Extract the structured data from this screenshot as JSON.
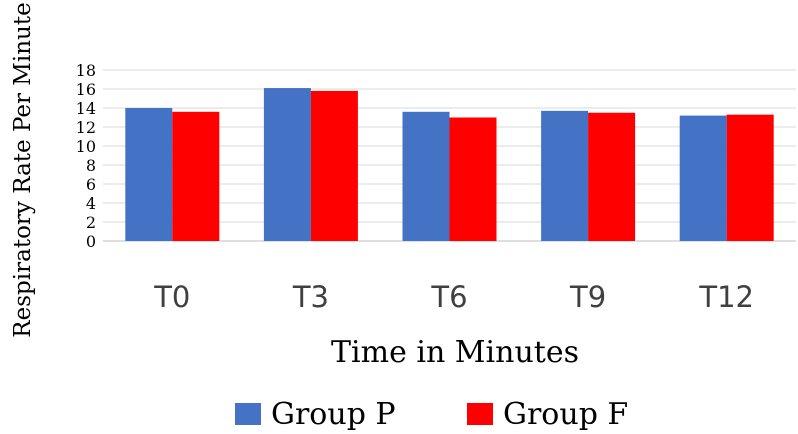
{
  "chart_data": {
    "type": "bar",
    "title": "",
    "xlabel": "Time in Minutes",
    "ylabel": "Respiratory Rate Per Minute",
    "categories": [
      "T0",
      "T3",
      "T6",
      "T9",
      "T12"
    ],
    "series": [
      {
        "name": "Group P",
        "color": "#4472C4",
        "values": [
          14.0,
          16.1,
          13.6,
          13.7,
          13.2
        ]
      },
      {
        "name": "Group F",
        "color": "#FF0000",
        "values": [
          13.6,
          15.8,
          13.0,
          13.5,
          13.3
        ]
      }
    ],
    "ylim": [
      0,
      18
    ],
    "yticks": [
      "0",
      "2",
      "4",
      "6",
      "8",
      "10",
      "12",
      "14",
      "16",
      "18"
    ],
    "grid": true,
    "legend": "bottom"
  }
}
